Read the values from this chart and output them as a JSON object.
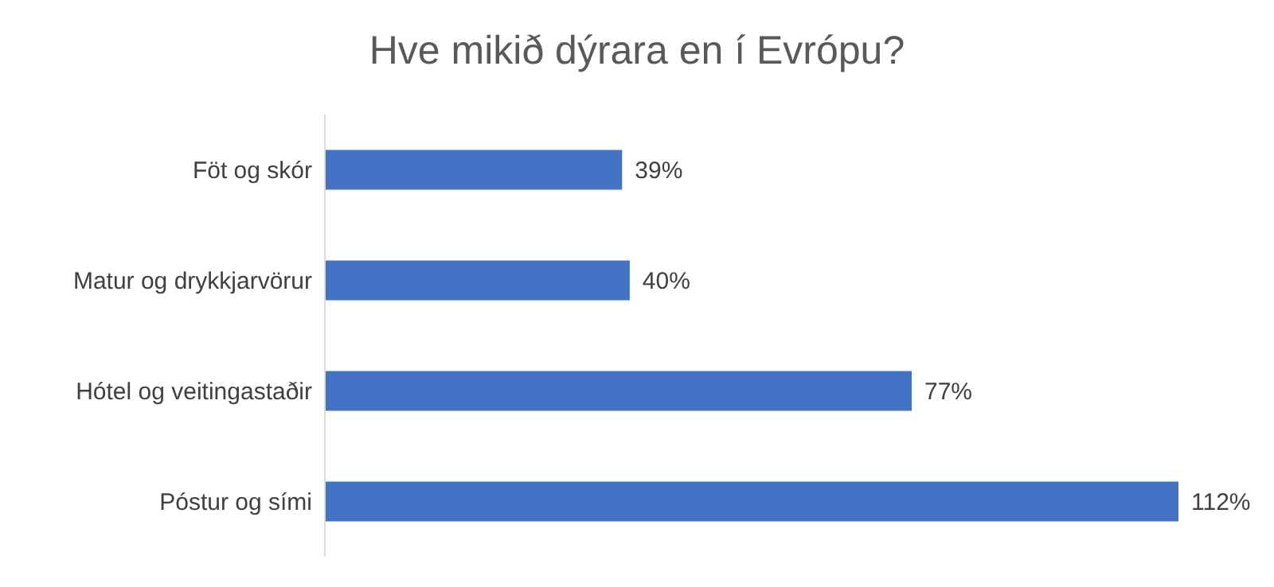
{
  "chart_data": {
    "type": "bar",
    "orientation": "horizontal",
    "title": "Hve mikið dýrara en í Evrópu?",
    "categories": [
      "Föt og skór",
      "Matur og drykkjarvörur",
      "Hótel og veitingastaðir",
      "Póstur og sími"
    ],
    "values": [
      39,
      40,
      77,
      112
    ],
    "value_labels": [
      "39%",
      "40%",
      "77%",
      "112%"
    ],
    "color": "#4472c4"
  }
}
